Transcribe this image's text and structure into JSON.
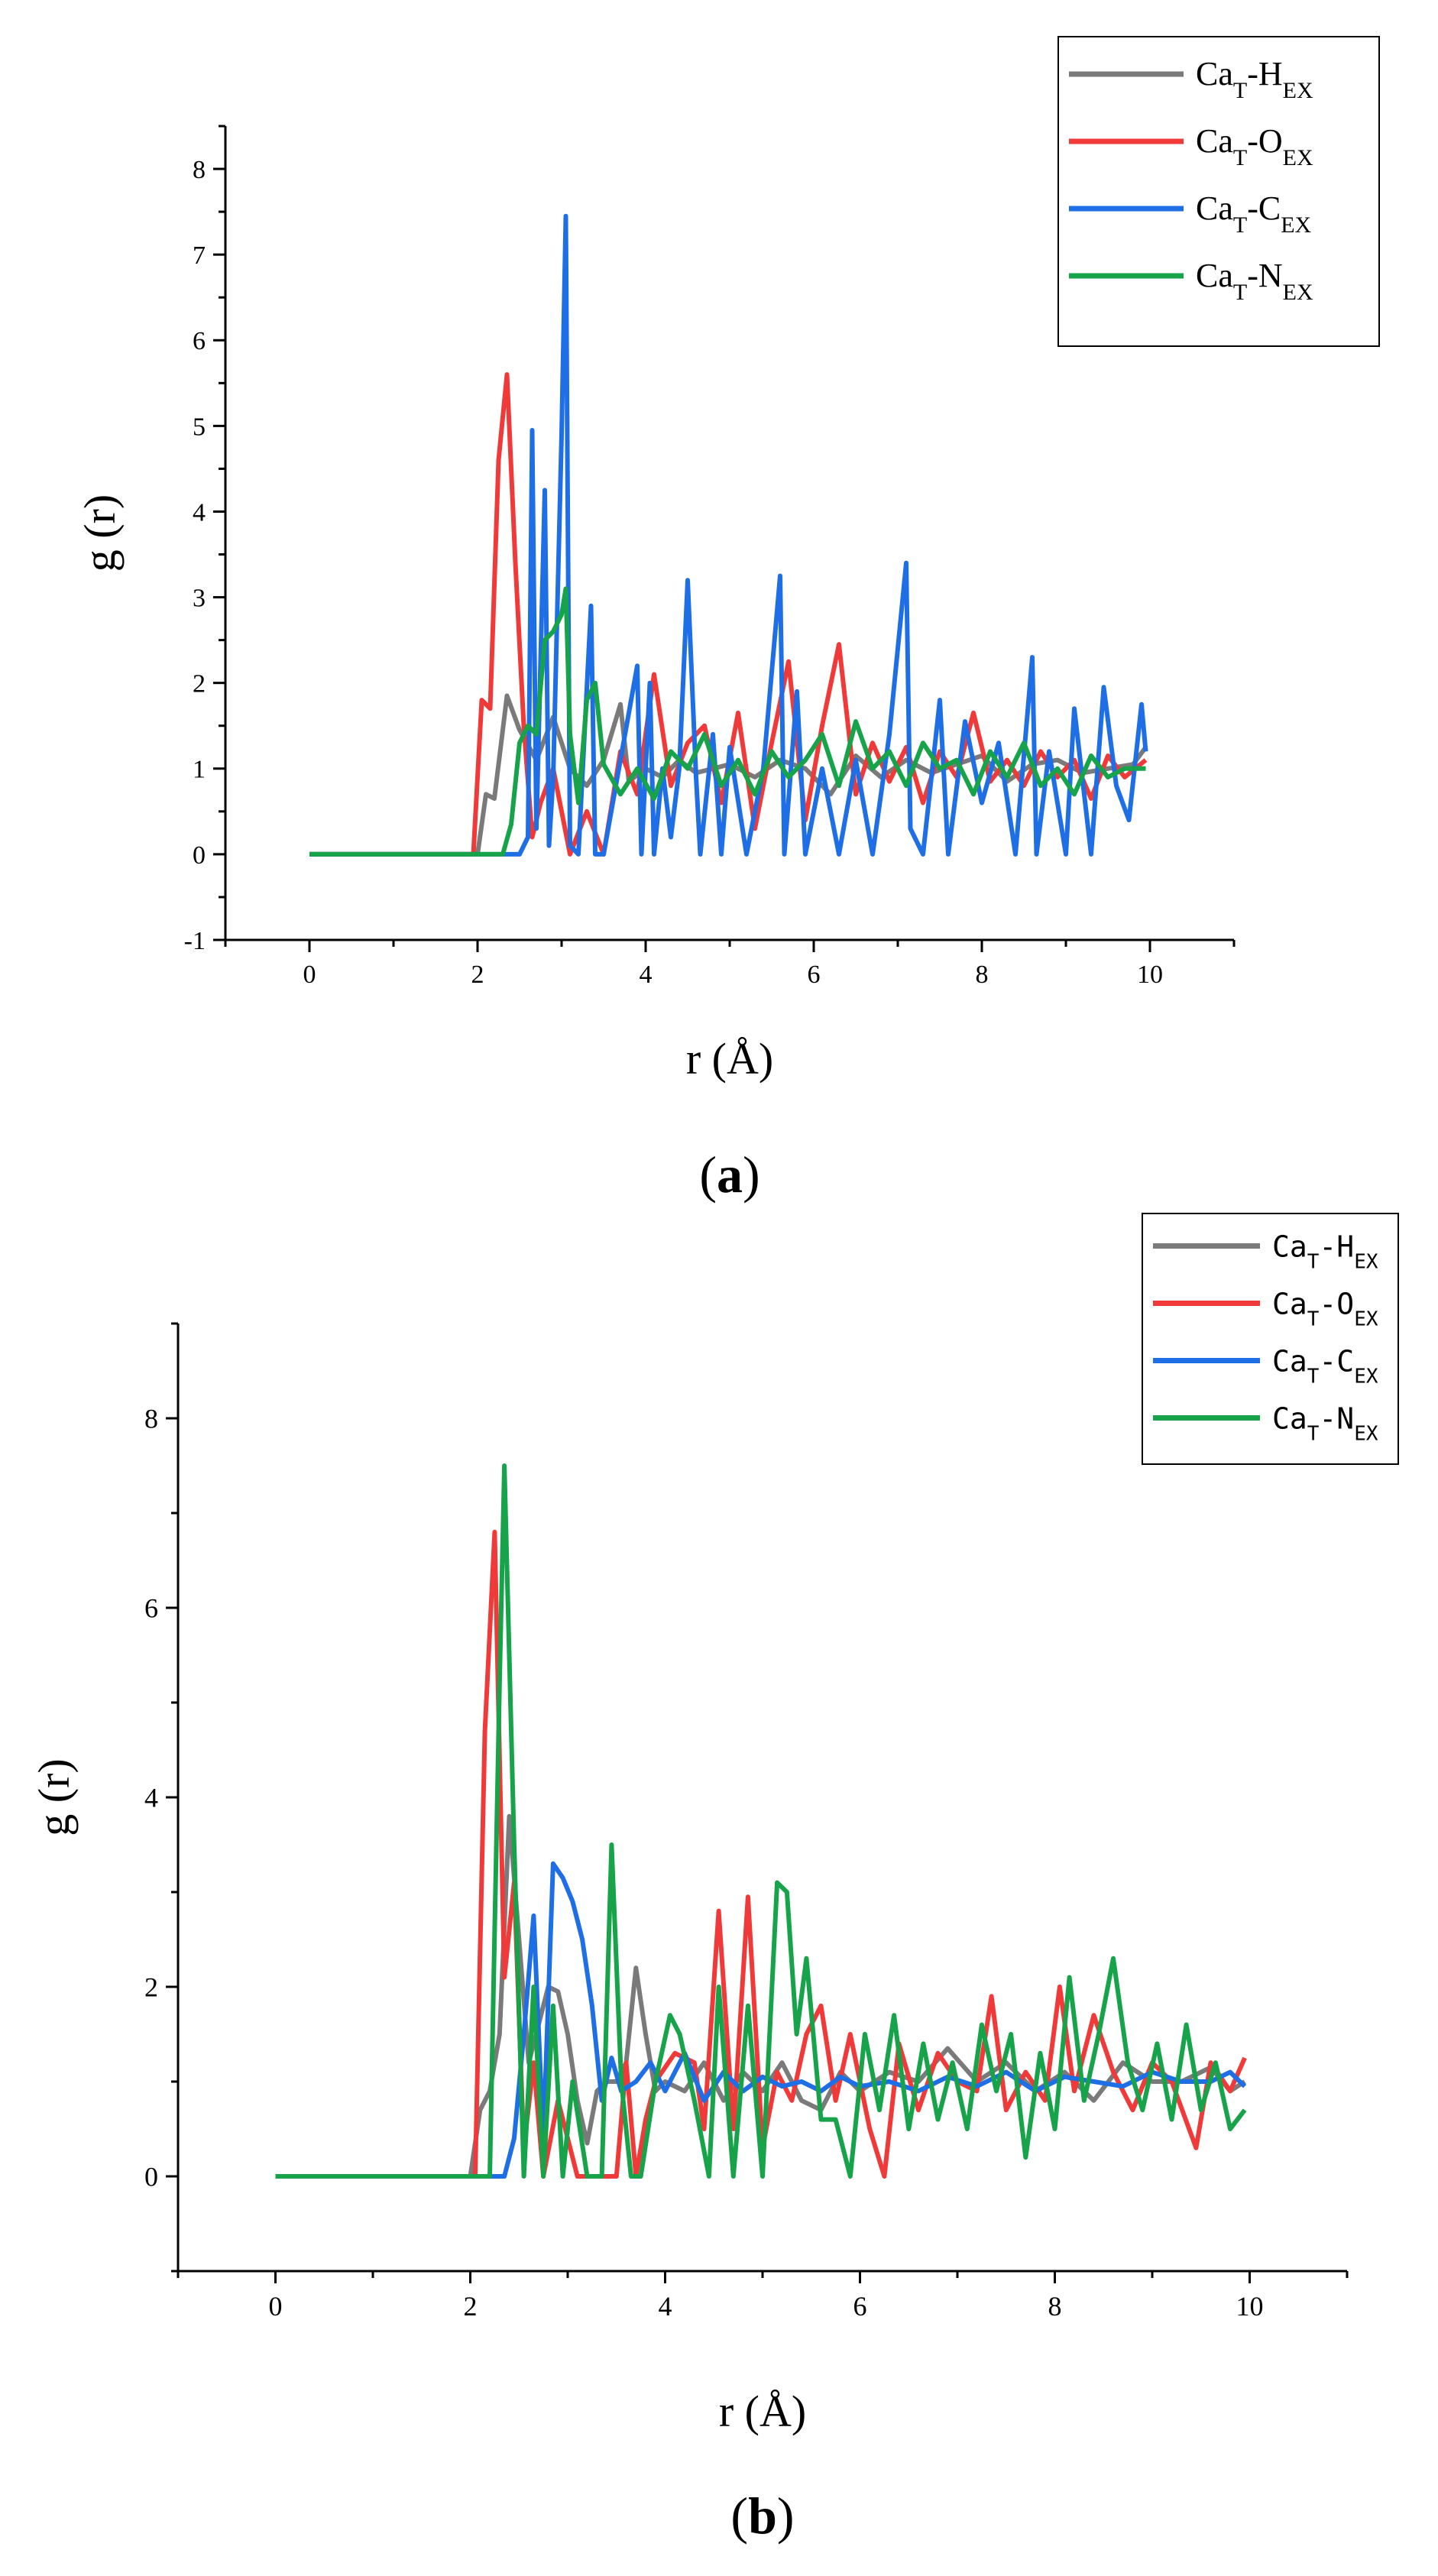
{
  "chart_data": [
    {
      "type": "line",
      "panel": "a",
      "caption_left": "(",
      "caption_bold": "a",
      "caption_right": ")",
      "xlabel": "r (Å)",
      "ylabel": "g (r)",
      "xlim": [
        -1,
        11
      ],
      "ylim": [
        -1,
        8.5
      ],
      "xticks": [
        0,
        2,
        4,
        6,
        8,
        10
      ],
      "xtick_labels": [
        "0",
        "2",
        "4",
        "6",
        "8",
        "10"
      ],
      "yticks": [
        -1,
        0,
        1,
        2,
        3,
        4,
        5,
        6,
        7,
        8
      ],
      "ytick_labels": [
        "-1",
        "0",
        "1",
        "2",
        "3",
        "4",
        "5",
        "6",
        "7",
        "8"
      ],
      "legend": {
        "position": "top-right"
      },
      "series": [
        {
          "name": "CaT-HEX",
          "base": "Ca",
          "sub1": "T",
          "mid": "-H",
          "sub2": "EX",
          "color": "#7a7a7a",
          "x": [
            0.0,
            2.0,
            2.1,
            2.2,
            2.35,
            2.5,
            2.7,
            2.9,
            3.1,
            3.3,
            3.5,
            3.7,
            3.8,
            4.0,
            4.2,
            4.4,
            4.6,
            4.8,
            5.0,
            5.3,
            5.6,
            5.9,
            6.2,
            6.5,
            6.8,
            7.1,
            7.4,
            7.7,
            8.0,
            8.3,
            8.6,
            8.9,
            9.2,
            9.5,
            9.8,
            9.95
          ],
          "y": [
            0,
            0,
            0.7,
            0.65,
            1.85,
            1.45,
            1.1,
            1.6,
            1.0,
            0.8,
            1.1,
            1.75,
            0.85,
            1.0,
            0.9,
            1.1,
            0.95,
            1.0,
            1.05,
            0.9,
            1.1,
            1.0,
            0.7,
            1.15,
            0.9,
            1.1,
            0.95,
            1.05,
            1.15,
            0.85,
            1.05,
            1.1,
            0.95,
            1.0,
            1.05,
            1.25
          ]
        },
        {
          "name": "CaT-OEX",
          "base": "Ca",
          "sub1": "T",
          "mid": "-O",
          "sub2": "EX",
          "color": "#f03a3a",
          "x": [
            0.0,
            1.95,
            2.05,
            2.15,
            2.25,
            2.35,
            2.45,
            2.55,
            2.65,
            2.75,
            2.9,
            3.1,
            3.3,
            3.5,
            3.7,
            3.9,
            4.1,
            4.3,
            4.5,
            4.7,
            4.9,
            5.1,
            5.3,
            5.5,
            5.7,
            5.9,
            6.1,
            6.3,
            6.5,
            6.7,
            6.9,
            7.1,
            7.3,
            7.5,
            7.7,
            7.9,
            8.1,
            8.3,
            8.5,
            8.7,
            8.9,
            9.1,
            9.3,
            9.5,
            9.7,
            9.95
          ],
          "y": [
            0,
            0,
            1.8,
            1.7,
            4.6,
            5.6,
            3.4,
            1.5,
            0.2,
            0.6,
            1.0,
            0.0,
            0.5,
            0.0,
            1.2,
            0.7,
            2.1,
            0.8,
            1.3,
            1.5,
            0.6,
            1.65,
            0.3,
            1.3,
            2.25,
            0.4,
            1.5,
            2.45,
            0.7,
            1.3,
            0.85,
            1.25,
            0.6,
            1.2,
            0.9,
            1.65,
            0.85,
            1.1,
            0.8,
            1.2,
            0.9,
            1.1,
            0.65,
            1.15,
            0.9,
            1.1
          ]
        },
        {
          "name": "CaT-CEX",
          "base": "Ca",
          "sub1": "T",
          "mid": "-C",
          "sub2": "EX",
          "color": "#1e6ee6",
          "x": [
            0.0,
            2.5,
            2.6,
            2.65,
            2.7,
            2.8,
            2.85,
            2.9,
            3.0,
            3.05,
            3.1,
            3.2,
            3.35,
            3.4,
            3.5,
            3.9,
            3.95,
            4.05,
            4.1,
            4.2,
            4.3,
            4.4,
            4.5,
            4.6,
            4.65,
            4.8,
            4.9,
            5.0,
            5.2,
            5.4,
            5.6,
            5.65,
            5.8,
            5.9,
            6.1,
            6.3,
            6.5,
            6.7,
            6.9,
            7.1,
            7.15,
            7.3,
            7.5,
            7.6,
            7.8,
            8.0,
            8.2,
            8.4,
            8.6,
            8.65,
            8.8,
            9.0,
            9.1,
            9.3,
            9.45,
            9.6,
            9.75,
            9.9,
            9.95
          ],
          "y": [
            0,
            0,
            0.2,
            4.95,
            0.3,
            4.25,
            0.1,
            0.9,
            4.9,
            7.45,
            0.1,
            0.0,
            2.9,
            0.0,
            0.0,
            2.2,
            0.0,
            2.0,
            0.0,
            1.0,
            0.2,
            1.0,
            3.2,
            0.9,
            0.0,
            1.4,
            0.0,
            1.25,
            0.0,
            1.0,
            3.25,
            0.0,
            1.9,
            0.0,
            1.0,
            0.0,
            1.1,
            0.0,
            1.4,
            3.4,
            0.3,
            0.0,
            1.8,
            0.0,
            1.55,
            0.6,
            1.3,
            0.0,
            2.3,
            0.0,
            1.2,
            0.0,
            1.7,
            0.0,
            1.95,
            0.8,
            0.4,
            1.75,
            1.2
          ]
        },
        {
          "name": "CaT-NEX",
          "base": "Ca",
          "sub1": "T",
          "mid": "-N",
          "sub2": "EX",
          "color": "#16a34a",
          "x": [
            0.0,
            2.3,
            2.4,
            2.5,
            2.6,
            2.7,
            2.8,
            2.9,
            3.0,
            3.05,
            3.1,
            3.2,
            3.3,
            3.4,
            3.5,
            3.7,
            3.9,
            4.1,
            4.3,
            4.5,
            4.7,
            4.9,
            5.1,
            5.3,
            5.5,
            5.7,
            5.9,
            6.1,
            6.3,
            6.5,
            6.7,
            6.9,
            7.1,
            7.3,
            7.5,
            7.7,
            7.9,
            8.1,
            8.3,
            8.5,
            8.7,
            8.9,
            9.1,
            9.3,
            9.5,
            9.7,
            9.95
          ],
          "y": [
            0,
            0,
            0.35,
            1.3,
            1.5,
            1.4,
            2.5,
            2.6,
            2.8,
            3.1,
            1.4,
            0.6,
            1.8,
            2.0,
            1.05,
            0.7,
            1.0,
            0.65,
            1.2,
            1.0,
            1.4,
            0.8,
            1.1,
            0.7,
            1.2,
            0.9,
            1.1,
            1.4,
            0.8,
            1.55,
            1.0,
            1.2,
            0.8,
            1.3,
            1.0,
            1.1,
            0.7,
            1.2,
            0.9,
            1.3,
            0.8,
            1.0,
            0.7,
            1.15,
            0.9,
            1.0,
            1.0
          ]
        }
      ]
    },
    {
      "type": "line",
      "panel": "b",
      "caption_left": "(",
      "caption_bold": "b",
      "caption_right": ")",
      "xlabel": "r (Å)",
      "ylabel": "g (r)",
      "xlim": [
        -1,
        11
      ],
      "ylim": [
        -1,
        9
      ],
      "xticks": [
        0,
        2,
        4,
        6,
        8,
        10
      ],
      "xtick_labels": [
        "0",
        "2",
        "4",
        "6",
        "8",
        "10"
      ],
      "yticks": [
        0,
        2,
        4,
        6,
        8
      ],
      "ytick_labels": [
        "0",
        "2",
        "4",
        "6",
        "8"
      ],
      "legend": {
        "position": "top-right"
      },
      "series": [
        {
          "name": "CaT-HEX",
          "base": "Ca",
          "sub1": "T",
          "mid": "-H",
          "sub2": "EX",
          "color": "#7a7a7a",
          "x": [
            0.0,
            2.0,
            2.1,
            2.2,
            2.3,
            2.4,
            2.5,
            2.6,
            2.7,
            2.8,
            2.9,
            3.0,
            3.1,
            3.2,
            3.3,
            3.4,
            3.5,
            3.6,
            3.7,
            3.8,
            3.9,
            4.0,
            4.2,
            4.4,
            4.6,
            4.8,
            5.0,
            5.2,
            5.4,
            5.6,
            5.8,
            6.0,
            6.3,
            6.6,
            6.9,
            7.2,
            7.5,
            7.8,
            8.1,
            8.4,
            8.7,
            9.0,
            9.3,
            9.6,
            9.8,
            9.95
          ],
          "y": [
            0,
            0,
            0.7,
            0.9,
            1.5,
            3.8,
            2.5,
            1.2,
            1.6,
            2.0,
            1.95,
            1.5,
            0.8,
            0.35,
            0.9,
            1.0,
            1.0,
            1.2,
            2.2,
            1.5,
            0.9,
            1.0,
            0.9,
            1.2,
            0.8,
            1.1,
            0.9,
            1.2,
            0.8,
            0.7,
            1.1,
            0.9,
            1.1,
            1.0,
            1.35,
            1.0,
            1.2,
            0.9,
            1.1,
            0.8,
            1.2,
            1.0,
            1.0,
            1.15,
            0.9,
            1.0
          ]
        },
        {
          "name": "CaT-OEX",
          "base": "Ca",
          "sub1": "T",
          "mid": "-O",
          "sub2": "EX",
          "color": "#f03a3a",
          "x": [
            0.0,
            2.05,
            2.15,
            2.25,
            2.35,
            2.45,
            2.55,
            2.65,
            2.75,
            2.9,
            3.1,
            3.3,
            3.5,
            3.6,
            3.7,
            3.8,
            3.9,
            4.1,
            4.3,
            4.4,
            4.55,
            4.7,
            4.85,
            5.0,
            5.15,
            5.3,
            5.45,
            5.6,
            5.75,
            5.9,
            6.1,
            6.25,
            6.4,
            6.6,
            6.8,
            7.0,
            7.2,
            7.35,
            7.5,
            7.7,
            7.9,
            8.05,
            8.2,
            8.4,
            8.6,
            8.8,
            9.0,
            9.2,
            9.45,
            9.6,
            9.8,
            9.95
          ],
          "y": [
            0,
            0,
            4.7,
            6.8,
            2.1,
            3.1,
            0.3,
            1.2,
            0.0,
            0.8,
            0.0,
            0.0,
            0.0,
            1.2,
            0.0,
            0.6,
            1.0,
            1.3,
            1.2,
            0.5,
            2.8,
            0.5,
            2.95,
            0.3,
            1.1,
            0.8,
            1.5,
            1.8,
            0.8,
            1.5,
            0.5,
            0.0,
            1.4,
            0.7,
            1.3,
            1.0,
            0.9,
            1.9,
            0.7,
            1.1,
            0.8,
            2.0,
            0.9,
            1.7,
            1.1,
            0.7,
            1.2,
            1.0,
            0.3,
            1.2,
            0.9,
            1.25
          ]
        },
        {
          "name": "CaT-CEX",
          "base": "Ca",
          "sub1": "T",
          "mid": "-C",
          "sub2": "EX",
          "color": "#1e6ee6",
          "x": [
            0.0,
            2.35,
            2.45,
            2.55,
            2.65,
            2.75,
            2.85,
            2.95,
            3.05,
            3.15,
            3.25,
            3.35,
            3.45,
            3.55,
            3.7,
            3.85,
            4.0,
            4.2,
            4.4,
            4.6,
            4.8,
            5.0,
            5.2,
            5.4,
            5.6,
            5.8,
            6.0,
            6.3,
            6.6,
            6.9,
            7.2,
            7.5,
            7.8,
            8.1,
            8.4,
            8.7,
            9.0,
            9.3,
            9.6,
            9.8,
            9.95
          ],
          "y": [
            0,
            0,
            0.4,
            1.5,
            2.75,
            0.4,
            3.3,
            3.15,
            2.9,
            2.5,
            1.8,
            0.8,
            1.25,
            0.9,
            1.0,
            1.2,
            0.9,
            1.3,
            0.8,
            1.1,
            0.9,
            1.05,
            0.95,
            1.0,
            0.9,
            1.05,
            0.95,
            1.0,
            0.9,
            1.05,
            0.95,
            1.1,
            0.9,
            1.05,
            1.0,
            0.95,
            1.1,
            1.0,
            1.0,
            1.1,
            0.95
          ]
        },
        {
          "name": "CaT-NEX",
          "base": "Ca",
          "sub1": "T",
          "mid": "-N",
          "sub2": "EX",
          "color": "#16a34a",
          "x": [
            0.0,
            2.2,
            2.3,
            2.35,
            2.45,
            2.55,
            2.65,
            2.75,
            2.85,
            2.95,
            3.05,
            3.2,
            3.35,
            3.45,
            3.55,
            3.65,
            3.75,
            3.9,
            4.05,
            4.15,
            4.3,
            4.45,
            4.55,
            4.7,
            4.85,
            5.0,
            5.15,
            5.25,
            5.35,
            5.45,
            5.6,
            5.75,
            5.9,
            6.05,
            6.2,
            6.35,
            6.5,
            6.65,
            6.8,
            6.95,
            7.1,
            7.25,
            7.4,
            7.55,
            7.7,
            7.85,
            8.0,
            8.15,
            8.3,
            8.45,
            8.6,
            8.75,
            8.9,
            9.05,
            9.2,
            9.35,
            9.5,
            9.65,
            9.8,
            9.95
          ],
          "y": [
            0,
            0,
            5.2,
            7.5,
            3.5,
            0.0,
            2.0,
            0.0,
            1.8,
            0.0,
            1.0,
            0.0,
            0.0,
            3.5,
            1.0,
            0.0,
            0.0,
            1.0,
            1.7,
            1.5,
            0.8,
            0.0,
            2.0,
            0.0,
            1.8,
            0.0,
            3.1,
            3.0,
            1.5,
            2.3,
            0.6,
            0.6,
            0.0,
            1.5,
            0.7,
            1.7,
            0.5,
            1.4,
            0.6,
            1.2,
            0.5,
            1.6,
            0.9,
            1.5,
            0.2,
            1.3,
            0.5,
            2.1,
            0.8,
            1.5,
            2.3,
            1.2,
            0.7,
            1.4,
            0.6,
            1.6,
            0.7,
            1.2,
            0.5,
            0.7
          ]
        }
      ]
    }
  ]
}
